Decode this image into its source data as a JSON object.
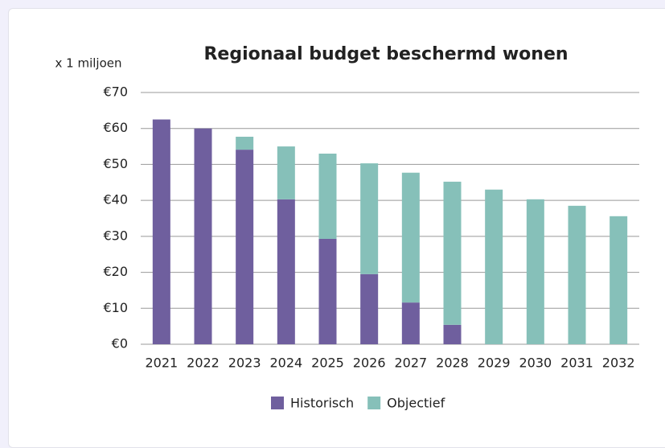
{
  "chart_data": {
    "type": "stacked_bar",
    "title": "Regionaal budget beschermd wonen",
    "y_label": "x 1 miljoen",
    "categories": [
      "2021",
      "2022",
      "2023",
      "2024",
      "2025",
      "2026",
      "2027",
      "2028",
      "2029",
      "2030",
      "2031",
      "2032"
    ],
    "series": [
      {
        "name": "Historisch",
        "color": "#6f5f9e",
        "values": [
          62.5,
          60,
          54.1,
          40.3,
          29.3,
          19.5,
          11.6,
          5.4,
          0,
          0,
          0,
          0
        ]
      },
      {
        "name": "Objectief",
        "color": "#86c0b9",
        "values": [
          0,
          0,
          3.6,
          14.7,
          23.7,
          30.8,
          36.1,
          39.8,
          43.0,
          40.3,
          38.5,
          35.6
        ]
      }
    ],
    "ylim": [
      0,
      70
    ],
    "yticks": [
      {
        "value": 0,
        "label": "€0"
      },
      {
        "value": 10,
        "label": "€10"
      },
      {
        "value": 20,
        "label": "€20"
      },
      {
        "value": 30,
        "label": "€30"
      },
      {
        "value": 40,
        "label": "€40"
      },
      {
        "value": 50,
        "label": "€50"
      },
      {
        "value": 60,
        "label": "€60"
      },
      {
        "value": 70,
        "label": "€70"
      }
    ],
    "grid": true,
    "legend": "bottom"
  }
}
